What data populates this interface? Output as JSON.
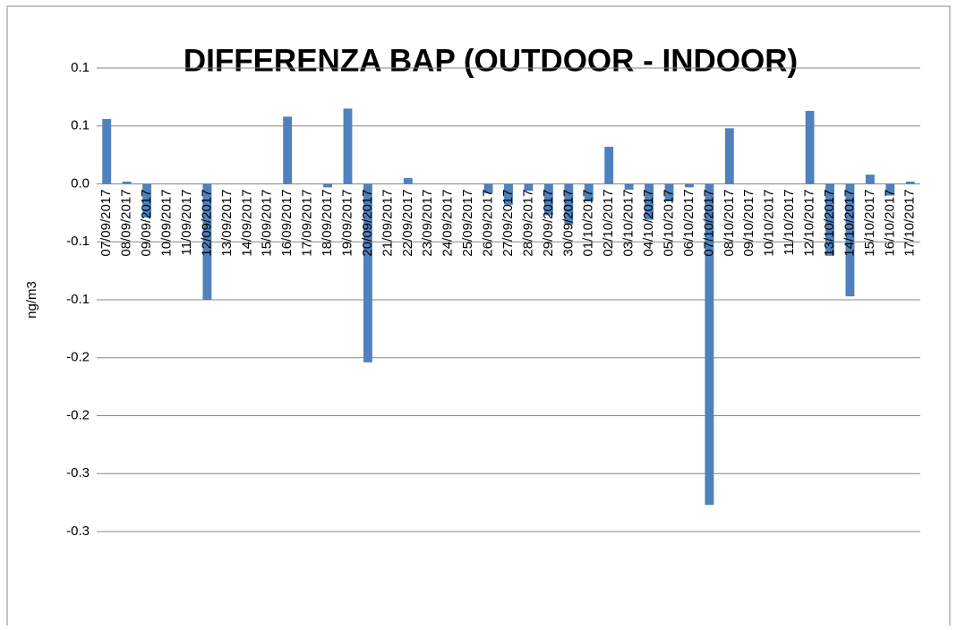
{
  "chart_data": {
    "type": "bar",
    "title": "DIFFERENZA  BAP (OUTDOOR - INDOOR)",
    "y_label": "ng/m3",
    "categories": [
      "07/09/2017",
      "08/09/2017",
      "09/09/2017",
      "10/09/2017",
      "11/09/2017",
      "12/09/2017",
      "13/09/2017",
      "14/09/2017",
      "15/09/2017",
      "16/09/2017",
      "17/09/2017",
      "18/09/2017",
      "19/09/2017",
      "20/09/2017",
      "21/09/2017",
      "22/09/2017",
      "23/09/2017",
      "24/09/2017",
      "25/09/2017",
      "26/09/2017",
      "27/09/2017",
      "28/09/2017",
      "29/09/2017",
      "30/09/2017",
      "01/10/2017",
      "02/10/2017",
      "03/10/2017",
      "04/10/2017",
      "05/10/2017",
      "06/10/2017",
      "07/10/2017",
      "08/10/2017",
      "09/10/2017",
      "10/10/2017",
      "11/10/2017",
      "12/10/2017",
      "13/10/2017",
      "14/10/2017",
      "15/10/2017",
      "16/10/2017",
      "17/10/2017"
    ],
    "values": [
      0.056,
      0.002,
      -0.029,
      0,
      0,
      -0.1,
      0,
      0,
      0,
      0.058,
      0,
      -0.003,
      0.065,
      -0.154,
      0,
      0.005,
      0,
      0,
      0,
      -0.008,
      -0.018,
      -0.006,
      -0.027,
      -0.035,
      -0.015,
      0.032,
      -0.005,
      -0.031,
      -0.015,
      -0.003,
      -0.277,
      0.048,
      0,
      0,
      0,
      0.063,
      -0.062,
      -0.097,
      0.008,
      -0.01,
      0.002
    ],
    "color": "#4f81bd",
    "ylim": [
      -0.3,
      0.1
    ],
    "yticks": [
      0.1,
      {
        "value": 0.05,
        "label": "0.1"
      },
      {
        "value": 0,
        "label": "0.0"
      },
      {
        "value": -0.05,
        "label": "-0.1"
      },
      {
        "value": -0.1,
        "label": "-0.1"
      },
      {
        "value": -0.15,
        "label": "-0.2"
      },
      {
        "value": -0.2,
        "label": "-0.2"
      },
      {
        "value": -0.25,
        "label": "-0.3"
      },
      -0.3
    ],
    "grid": true
  }
}
